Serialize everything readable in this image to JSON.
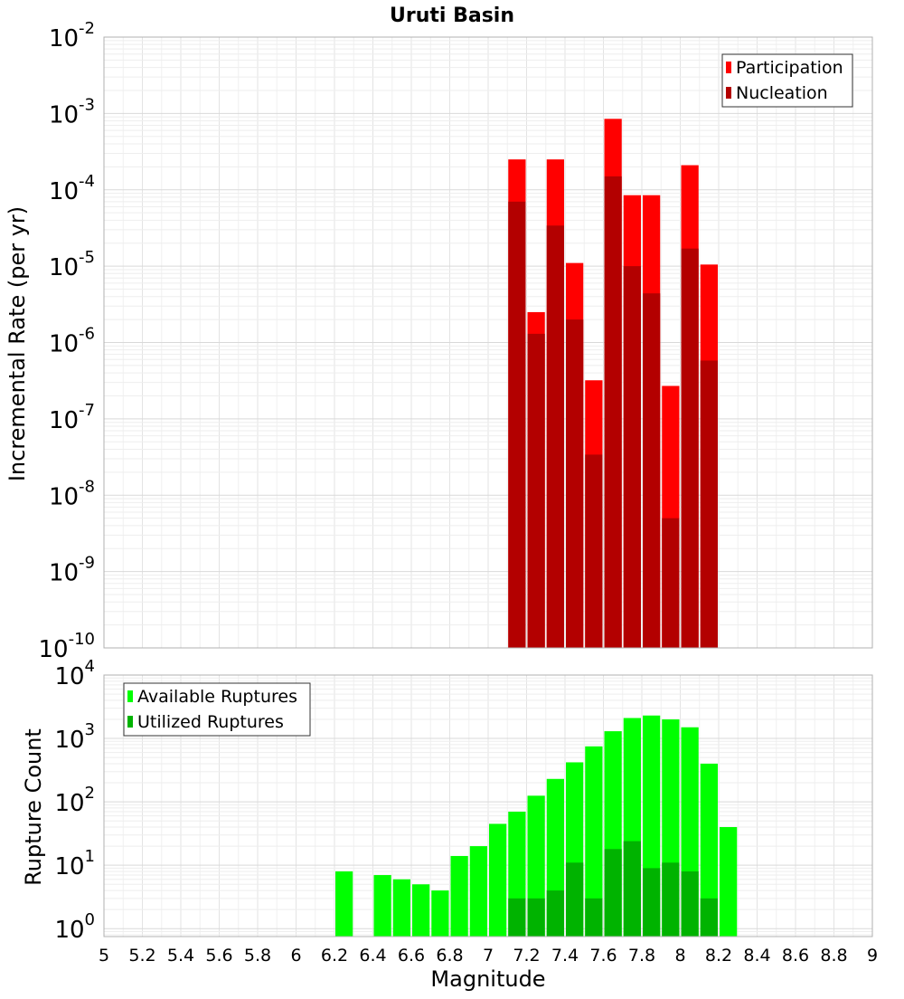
{
  "chart_data": [
    {
      "type": "bar",
      "title": "Uruti Basin",
      "xlabel": "",
      "ylabel": "Incremental Rate (per yr)",
      "y_scale": "log",
      "ylim": [
        1e-10,
        0.01
      ],
      "xlim": [
        5,
        9
      ],
      "grid": true,
      "legend_position": "top-right",
      "y_tick_bases": [
        "10",
        "10",
        "10",
        "10",
        "10",
        "10",
        "10",
        "10",
        "10"
      ],
      "y_tick_exponents": [
        "-2",
        "-3",
        "-4",
        "-5",
        "-6",
        "-7",
        "-8",
        "-9",
        "-10"
      ],
      "bar_width": 0.1,
      "series": [
        {
          "name": "Participation",
          "color": "#ff0000",
          "x": [
            7.15,
            7.25,
            7.35,
            7.45,
            7.55,
            7.65,
            7.75,
            7.85,
            7.95,
            8.05,
            8.15
          ],
          "values": [
            0.00025,
            2.5e-06,
            0.00025,
            1.1e-05,
            3.2e-07,
            0.00085,
            8.5e-05,
            8.5e-05,
            2.7e-07,
            0.00021,
            1.05e-05
          ]
        },
        {
          "name": "Nucleation",
          "color": "#b30000",
          "x": [
            7.15,
            7.25,
            7.35,
            7.45,
            7.55,
            7.65,
            7.75,
            7.85,
            7.95,
            8.05,
            8.15
          ],
          "values": [
            7e-05,
            1.3e-06,
            3.4e-05,
            2e-06,
            3.4e-08,
            0.00015,
            1e-05,
            4.4e-06,
            5e-09,
            1.7e-05,
            5.8e-07
          ]
        }
      ]
    },
    {
      "type": "bar",
      "title": "",
      "xlabel": "Magnitude",
      "ylabel": "Rupture Count",
      "y_scale": "log",
      "ylim": [
        0.75,
        10000
      ],
      "xlim": [
        5,
        9
      ],
      "grid": true,
      "legend_position": "top-left",
      "y_tick_bases": [
        "10",
        "10",
        "10",
        "10",
        "10"
      ],
      "y_tick_exponents": [
        "4",
        "3",
        "2",
        "1",
        "0"
      ],
      "x_tick_labels": [
        "5",
        "5.2",
        "5.4",
        "5.6",
        "5.8",
        "6",
        "6.2",
        "6.4",
        "6.6",
        "6.8",
        "7",
        "7.2",
        "7.4",
        "7.6",
        "7.8",
        "8",
        "8.2",
        "8.4",
        "8.6",
        "8.8",
        "9"
      ],
      "bar_width": 0.1,
      "series": [
        {
          "name": "Available Ruptures",
          "color": "#00ff00",
          "x": [
            6.25,
            6.45,
            6.55,
            6.65,
            6.75,
            6.85,
            6.95,
            7.05,
            7.15,
            7.25,
            7.35,
            7.45,
            7.55,
            7.65,
            7.75,
            7.85,
            7.95,
            8.05,
            8.15,
            8.25
          ],
          "values": [
            8,
            7,
            6,
            5,
            4,
            14,
            20,
            45,
            70,
            125,
            230,
            420,
            750,
            1300,
            2100,
            2300,
            2000,
            1500,
            400,
            40
          ]
        },
        {
          "name": "Utilized Ruptures",
          "color": "#00b300",
          "x": [
            7.15,
            7.25,
            7.35,
            7.45,
            7.55,
            7.65,
            7.75,
            7.85,
            7.95,
            8.05,
            8.15
          ],
          "values": [
            3,
            3,
            4,
            11,
            3,
            18,
            24,
            9,
            11,
            8,
            3
          ]
        }
      ]
    }
  ]
}
